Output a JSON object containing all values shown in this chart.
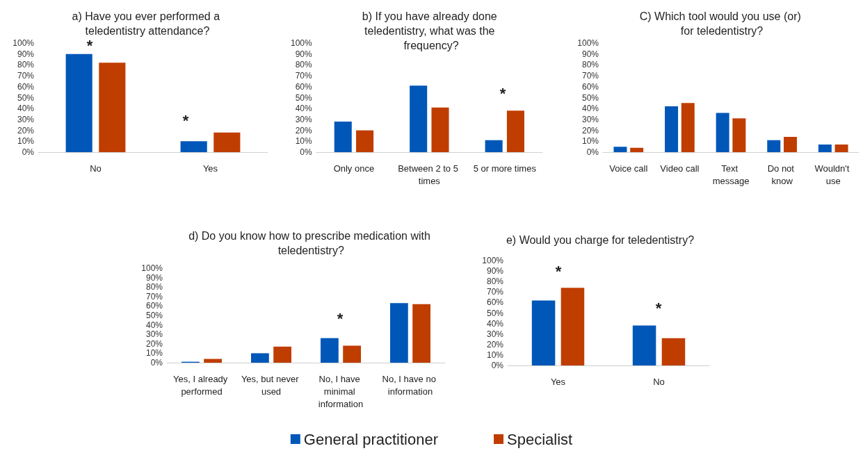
{
  "chart_data": [
    {
      "type": "bar",
      "title": "a) Have you ever performed a teledentistry attendance?",
      "categories": [
        "No",
        "Yes"
      ],
      "series": [
        {
          "color": "#0057b8",
          "values": [
            90,
            10
          ]
        },
        {
          "color": "#c03d00",
          "values": [
            82,
            18
          ]
        }
      ],
      "ylim": [
        0,
        100
      ],
      "yticks": [
        {
          "value": 0,
          "label": "0%"
        },
        {
          "value": 10,
          "label": "10%"
        },
        {
          "value": 20,
          "label": "20%"
        },
        {
          "value": 30,
          "label": "30%"
        },
        {
          "value": 40,
          "label": "40%"
        },
        {
          "value": 50,
          "label": "50%"
        },
        {
          "value": 60,
          "label": "60%"
        },
        {
          "value": 70,
          "label": "70%"
        },
        {
          "value": 80,
          "label": "80%"
        },
        {
          "value": 90,
          "label": "90%"
        },
        {
          "value": 100,
          "label": "100%"
        }
      ],
      "annotations": [
        "*",
        "*"
      ]
    },
    {
      "type": "bar",
      "title": "b) If you have already done teledentistry, what was the frequency?",
      "categories": [
        "Only once",
        "Between 2 to 5 times",
        "5 or more times"
      ],
      "series": [
        {
          "color": "#0057b8",
          "values": [
            28,
            61,
            11
          ]
        },
        {
          "color": "#c03d00",
          "values": [
            20,
            41,
            38
          ]
        }
      ],
      "ylim": [
        0,
        100
      ],
      "yticks": [
        {
          "value": 0,
          "label": "0%"
        },
        {
          "value": 10,
          "label": "10%"
        },
        {
          "value": 20,
          "label": "20%"
        },
        {
          "value": 30,
          "label": "30%"
        },
        {
          "value": 40,
          "label": "40%"
        },
        {
          "value": 50,
          "label": "50%"
        },
        {
          "value": 60,
          "label": "60%"
        },
        {
          "value": 70,
          "label": "70%"
        },
        {
          "value": 80,
          "label": "80%"
        },
        {
          "value": 90,
          "label": "90%"
        },
        {
          "value": 100,
          "label": "100%"
        }
      ],
      "annotations": [
        "*"
      ]
    },
    {
      "type": "bar",
      "title": "C) Which tool would you use (or) for teledentistry?",
      "categories": [
        "Voice call",
        "Video call",
        "Text message",
        "Do not know",
        "Wouldn't use"
      ],
      "series": [
        {
          "color": "#0057b8",
          "values": [
            5,
            42,
            36,
            11,
            7
          ]
        },
        {
          "color": "#c03d00",
          "values": [
            4,
            45,
            31,
            14,
            7
          ]
        }
      ],
      "ylim": [
        0,
        100
      ],
      "yticks": [
        {
          "value": 0,
          "label": "0%"
        },
        {
          "value": 10,
          "label": "10%"
        },
        {
          "value": 20,
          "label": "20%"
        },
        {
          "value": 30,
          "label": "30%"
        },
        {
          "value": 40,
          "label": "40%"
        },
        {
          "value": 50,
          "label": "50%"
        },
        {
          "value": 60,
          "label": "60%"
        },
        {
          "value": 70,
          "label": "70%"
        },
        {
          "value": 80,
          "label": "80%"
        },
        {
          "value": 90,
          "label": "90%"
        },
        {
          "value": 100,
          "label": "100%"
        }
      ]
    },
    {
      "type": "bar",
      "title": "d) Do you know how to prescribe medication with teledentistry?",
      "categories": [
        "Yes, I already performed",
        "Yes, but never used",
        "No, I have minimal information",
        "No, I have no information"
      ],
      "series": [
        {
          "name": "General practitioner",
          "color": "#0057b8",
          "values": [
            1,
            10,
            26,
            63
          ]
        },
        {
          "name": "Specialist",
          "color": "#c03d00",
          "values": [
            4,
            17,
            18,
            62
          ]
        }
      ],
      "ylim": [
        0,
        100
      ],
      "yticks": [
        {
          "value": 0,
          "label": "0%"
        },
        {
          "value": 10,
          "label": "10%"
        },
        {
          "value": 20,
          "label": "20%"
        },
        {
          "value": 30,
          "label": "30%"
        },
        {
          "value": 40,
          "label": "40%"
        },
        {
          "value": 50,
          "label": "50%"
        },
        {
          "value": 60,
          "label": "60%"
        },
        {
          "value": 70,
          "label": "70%"
        },
        {
          "value": 80,
          "label": "80%"
        },
        {
          "value": 90,
          "label": "90%"
        },
        {
          "value": 100,
          "label": "100%"
        }
      ],
      "legend": "bottom",
      "annotations": [
        "*"
      ]
    },
    {
      "type": "bar",
      "title": "e) Would you charge for teledentistry?",
      "categories": [
        "Yes",
        "No"
      ],
      "series": [
        {
          "color": "#0057b8",
          "values": [
            62,
            38
          ]
        },
        {
          "color": "#c03d00",
          "values": [
            74,
            26
          ]
        }
      ],
      "ylim": [
        0,
        100
      ],
      "yticks": [
        {
          "value": 0,
          "label": "0%"
        },
        {
          "value": 10,
          "label": "10%"
        },
        {
          "value": 20,
          "label": "20%"
        },
        {
          "value": 30,
          "label": "30%"
        },
        {
          "value": 40,
          "label": "40%"
        },
        {
          "value": 50,
          "label": "50%"
        },
        {
          "value": 60,
          "label": "60%"
        },
        {
          "value": 70,
          "label": "70%"
        },
        {
          "value": 80,
          "label": "80%"
        },
        {
          "value": 90,
          "label": "90%"
        },
        {
          "value": 100,
          "label": "100%"
        }
      ],
      "annotations": [
        "*",
        "*"
      ]
    }
  ]
}
